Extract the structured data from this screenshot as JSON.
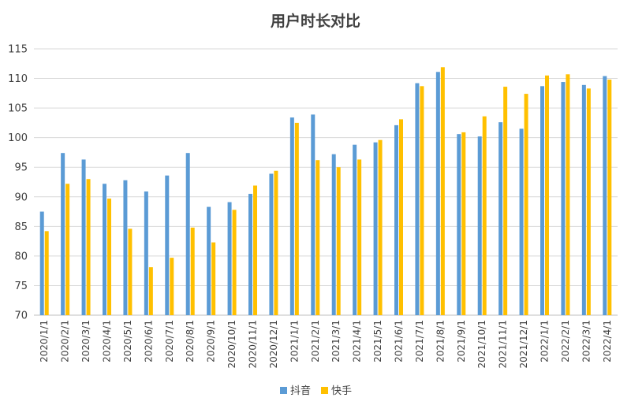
{
  "chart_data": {
    "type": "bar",
    "title": "用户时长对比",
    "xlabel": "",
    "ylabel": "",
    "ylim": [
      70,
      115
    ],
    "yticks": [
      70,
      75,
      80,
      85,
      90,
      95,
      100,
      105,
      110,
      115
    ],
    "grid": true,
    "legend_position": "bottom-center",
    "categories": [
      "2020/1/1",
      "2020/2/1",
      "2020/3/1",
      "2020/4/1",
      "2020/5/1",
      "2020/6/1",
      "2020/7/1",
      "2020/8/1",
      "2020/9/1",
      "2020/10/1",
      "2020/11/1",
      "2020/12/1",
      "2021/1/1",
      "2021/2/1",
      "2021/3/1",
      "2021/4/1",
      "2021/5/1",
      "2021/6/1",
      "2021/7/1",
      "2021/8/1",
      "2021/9/1",
      "2021/10/1",
      "2021/11/1",
      "2021/12/1",
      "2022/1/1",
      "2022/2/1",
      "2022/3/1",
      "2022/4/1"
    ],
    "series": [
      {
        "name": "抖音",
        "color": "#5b9bd5",
        "values": [
          87.5,
          97.4,
          96.3,
          92.2,
          92.8,
          90.9,
          93.6,
          97.4,
          88.3,
          89.1,
          90.5,
          93.9,
          103.4,
          103.9,
          97.2,
          98.8,
          99.2,
          102.1,
          109.2,
          111.1,
          100.6,
          100.2,
          102.6,
          101.5,
          108.7,
          109.4,
          108.9,
          110.4
        ]
      },
      {
        "name": "快手",
        "color": "#ffc000",
        "values": [
          84.2,
          92.2,
          93.0,
          89.7,
          84.6,
          78.1,
          79.7,
          84.8,
          82.3,
          87.8,
          91.9,
          94.4,
          102.5,
          96.2,
          95.0,
          96.3,
          99.6,
          103.1,
          108.7,
          111.9,
          100.9,
          103.6,
          108.6,
          107.4,
          110.5,
          110.7,
          108.3,
          109.8
        ]
      }
    ]
  }
}
